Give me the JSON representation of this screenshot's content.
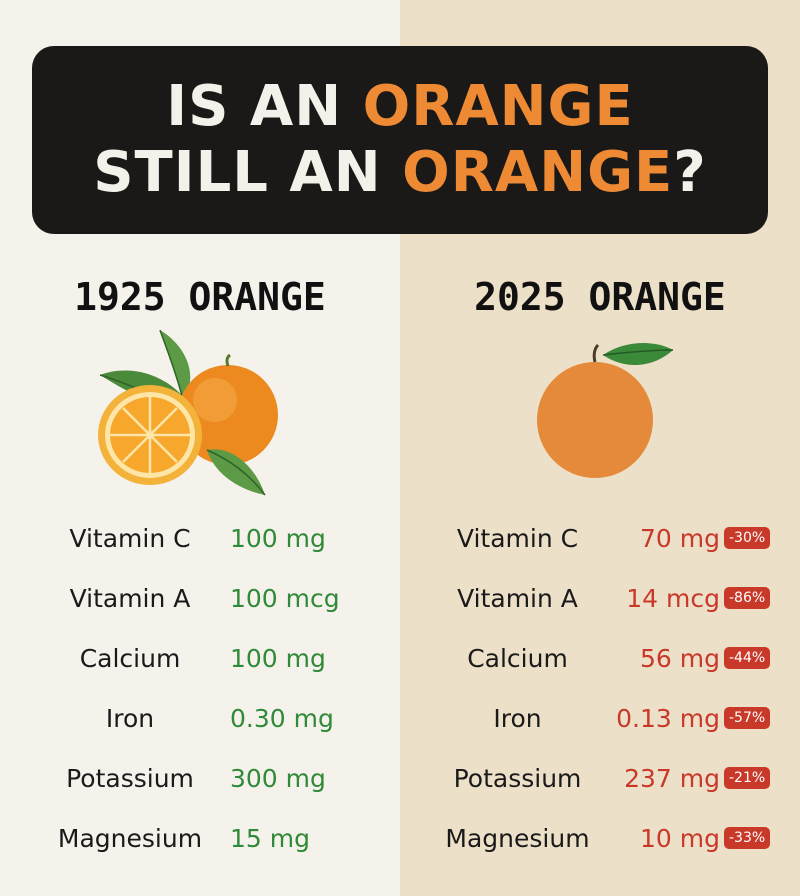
{
  "banner": {
    "line1_a": "IS AN ",
    "line1_b": "ORANGE",
    "line2_a": "STILL AN ",
    "line2_b": "ORANGE",
    "line2_c": "?"
  },
  "columns": {
    "left_title": "1925 ORANGE",
    "right_title": "2025 ORANGE"
  },
  "colors": {
    "accent": "#ee8a33",
    "positive_value": "#2f8a39",
    "negative_value": "#c9392a",
    "banner_bg": "#1a1918"
  },
  "icons": {
    "old_fruit": "orange-with-leaves-and-slice-icon",
    "new_fruit": "plain-orange-icon"
  },
  "nutrients_1925": [
    {
      "name": "Vitamin C",
      "value": "100 mg"
    },
    {
      "name": "Vitamin A",
      "value": "100 mcg"
    },
    {
      "name": "Calcium",
      "value": "100 mg"
    },
    {
      "name": "Iron",
      "value": "0.30 mg"
    },
    {
      "name": "Potassium",
      "value": "300 mg"
    },
    {
      "name": "Magnesium",
      "value": "15 mg"
    }
  ],
  "nutrients_2025": [
    {
      "name": "Vitamin C",
      "value": "70 mg",
      "change": "-30%"
    },
    {
      "name": "Vitamin A",
      "value": "14 mcg",
      "change": "-86%"
    },
    {
      "name": "Calcium",
      "value": "56 mg",
      "change": "-44%"
    },
    {
      "name": "Iron",
      "value": "0.13 mg",
      "change": "-57%"
    },
    {
      "name": "Potassium",
      "value": "237 mg",
      "change": "-21%"
    },
    {
      "name": "Magnesium",
      "value": "10 mg",
      "change": "-33%"
    }
  ]
}
